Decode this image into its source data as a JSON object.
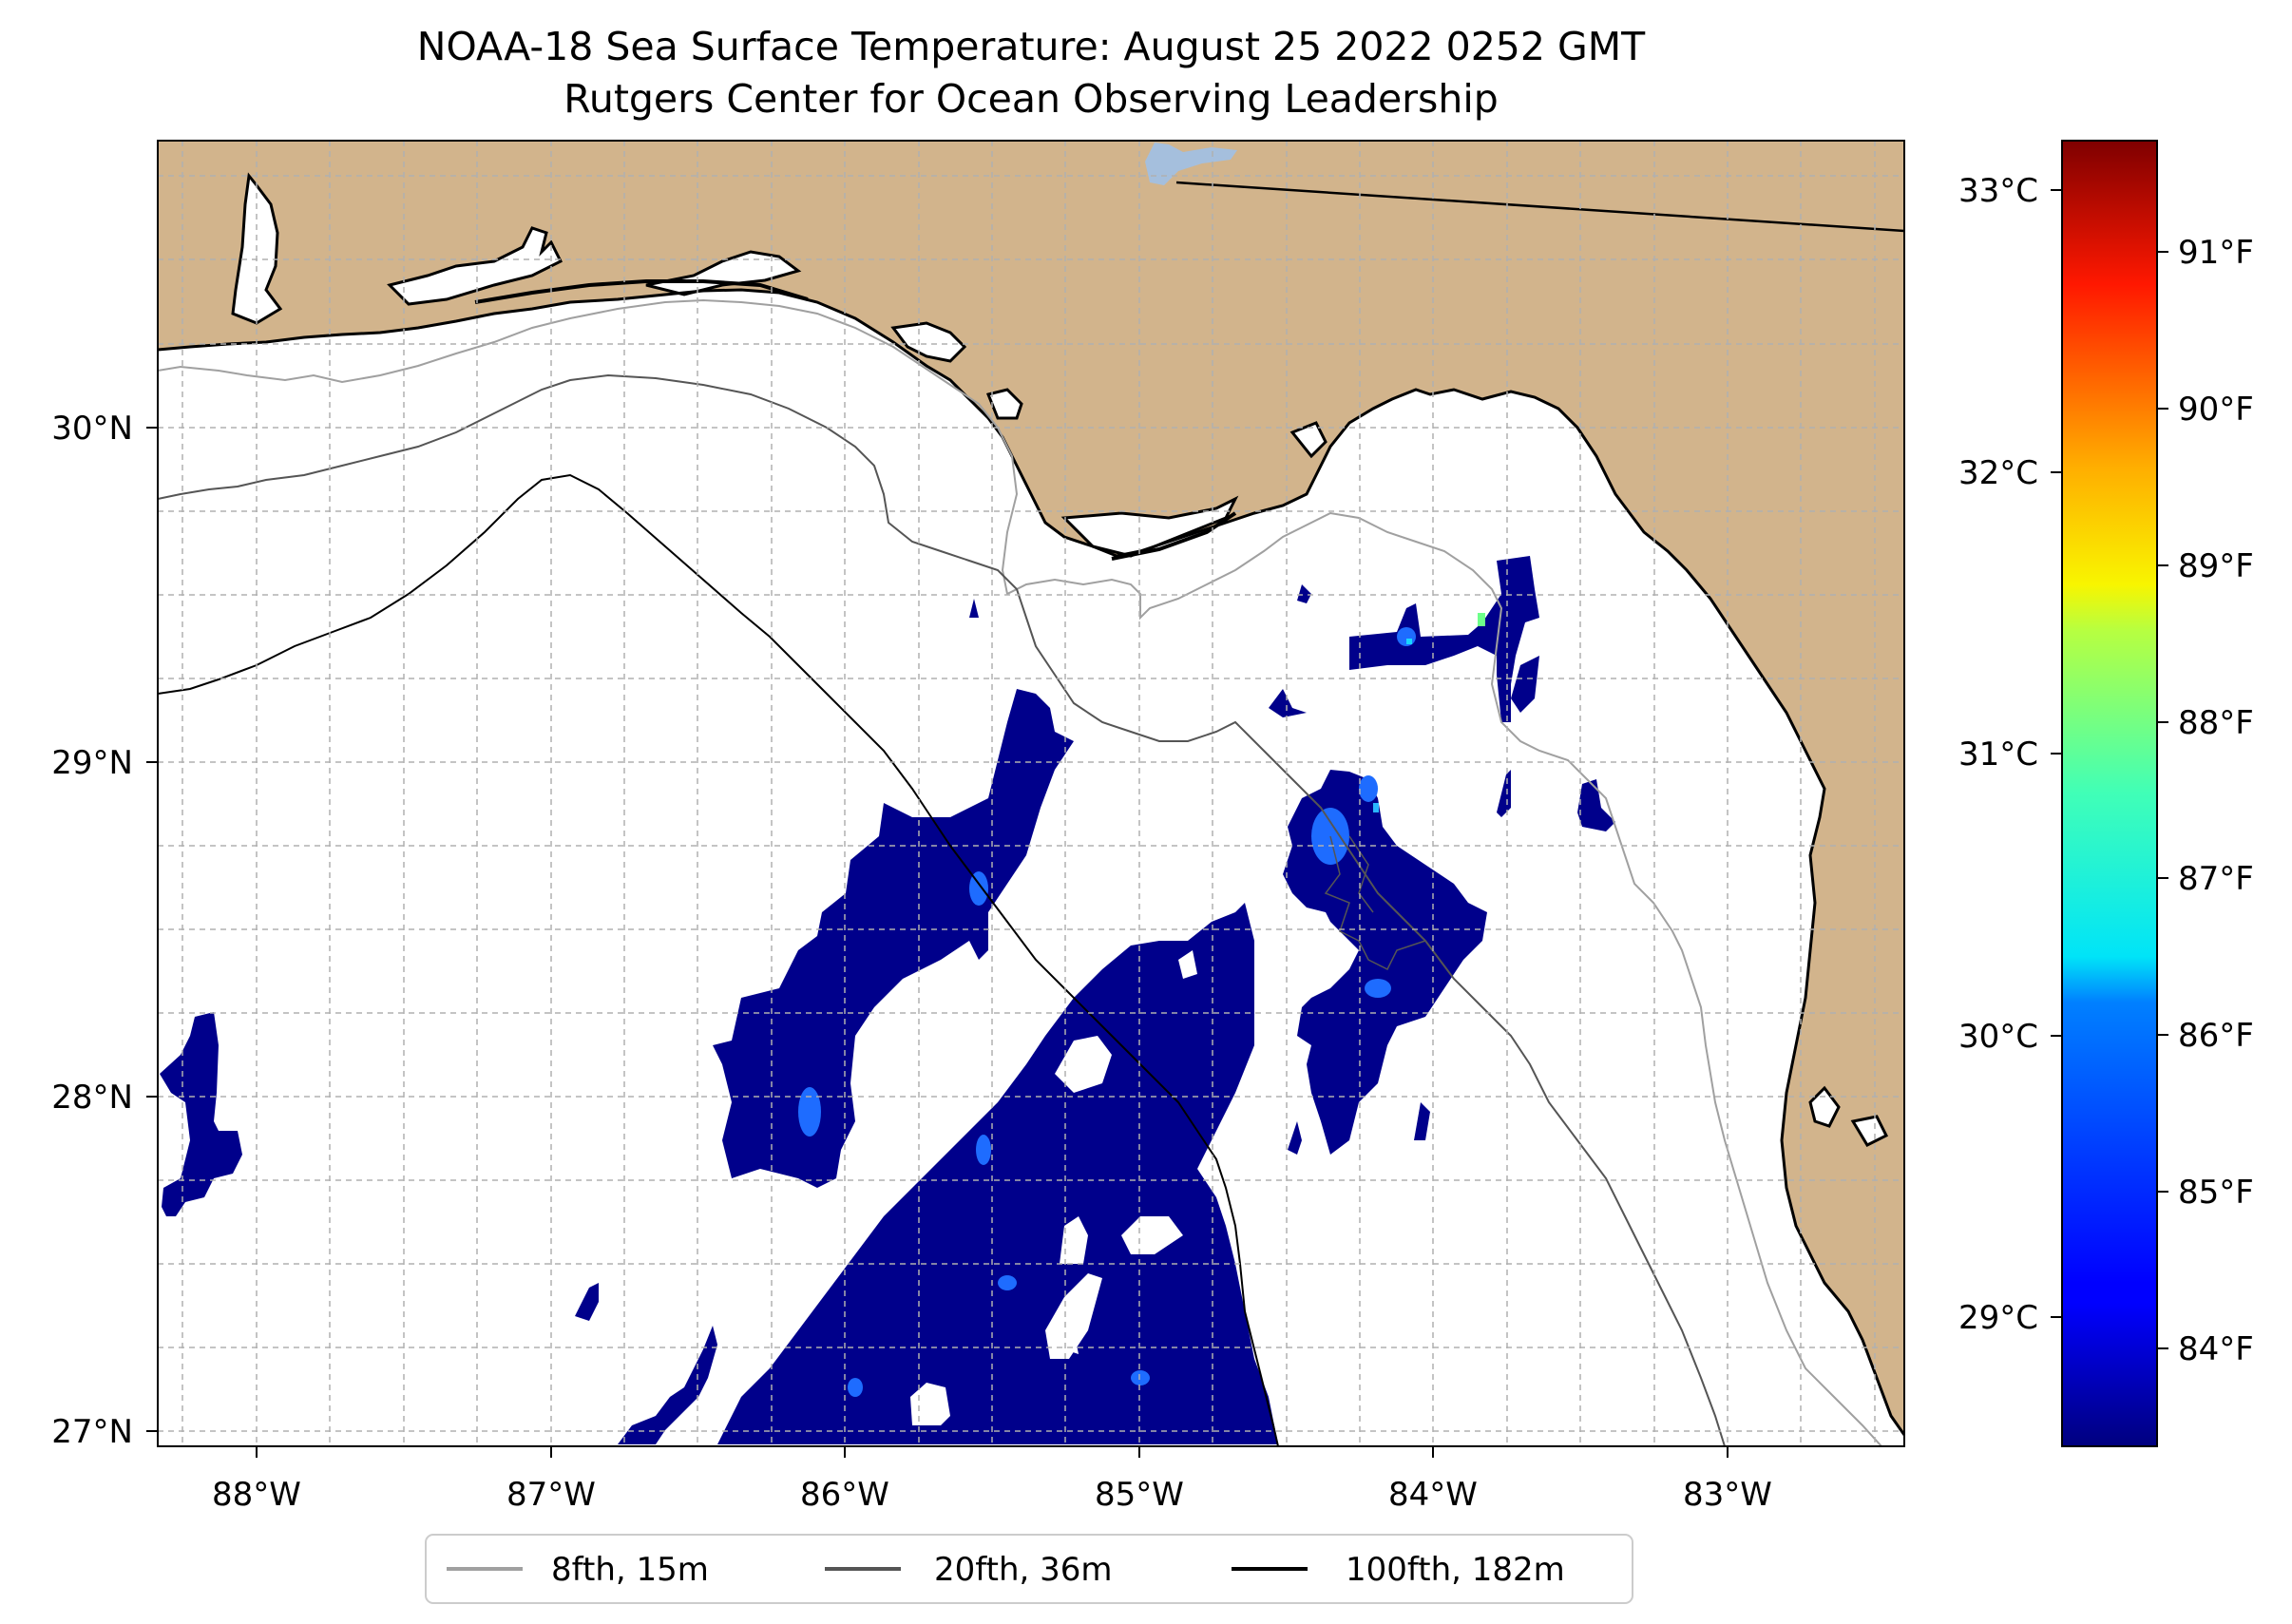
{
  "title": {
    "line1": "NOAA-18 Sea Surface Temperature: August 25 2022 0252 GMT",
    "line2": "Rutgers Center for Ocean Observing Leadership"
  },
  "map": {
    "lon_range": [
      -88.33,
      -82.4
    ],
    "lat_range": [
      26.94,
      30.85
    ],
    "lon_ticks": [
      "88°W",
      "87°W",
      "86°W",
      "85°W",
      "84°W",
      "83°W"
    ],
    "lat_ticks": [
      "30°N",
      "29°N",
      "28°N",
      "27°N"
    ],
    "gridlines": true,
    "land_color": "#D2B48C",
    "ocean_color": "#ffffff",
    "sst_fill_color": "#00008B"
  },
  "colorbar": {
    "colormap": "jet",
    "celsius_ticks": [
      "33°C",
      "32°C",
      "31°C",
      "30°C",
      "29°C"
    ],
    "fahrenheit_ticks": [
      "91°F",
      "90°F",
      "89°F",
      "88°F",
      "87°F",
      "86°F",
      "85°F",
      "84°F"
    ]
  },
  "legend": {
    "placement": "bottom-center",
    "items": [
      {
        "label": "8fth, 15m",
        "color": "#a0a0a0"
      },
      {
        "label": "20fth, 36m",
        "color": "#555555"
      },
      {
        "label": "100fth, 182m",
        "color": "#000000"
      }
    ]
  }
}
